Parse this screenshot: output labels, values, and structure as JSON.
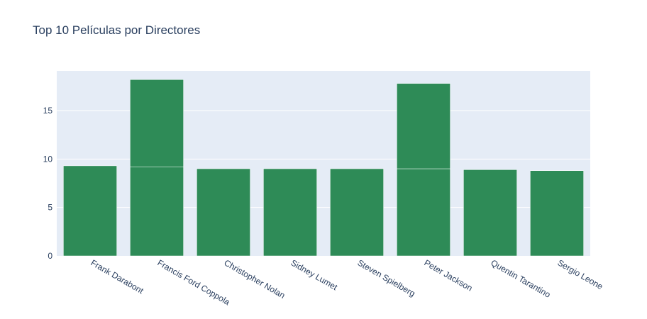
{
  "chart_data": {
    "type": "bar",
    "barmode": "stack",
    "title": "Top 10 Películas por Directores",
    "xlabel": "",
    "ylabel": "",
    "categories": [
      "Frank Darabont",
      "Francis Ford Coppola",
      "Christopher Nolan",
      "Sidney Lumet",
      "Steven Spielberg",
      "Peter Jackson",
      "Quentin Tarantino",
      "Sergio Leone"
    ],
    "segments": [
      {
        "category": "Frank Darabont",
        "value": 9.3
      },
      {
        "category": "Francis Ford Coppola",
        "value": 9.2
      },
      {
        "category": "Francis Ford Coppola",
        "value": 9.0
      },
      {
        "category": "Christopher Nolan",
        "value": 9.0
      },
      {
        "category": "Sidney Lumet",
        "value": 9.0
      },
      {
        "category": "Steven Spielberg",
        "value": 9.0
      },
      {
        "category": "Peter Jackson",
        "value": 9.0
      },
      {
        "category": "Peter Jackson",
        "value": 8.8
      },
      {
        "category": "Quentin Tarantino",
        "value": 8.9
      },
      {
        "category": "Sergio Leone",
        "value": 8.8
      }
    ],
    "ylim": [
      0,
      19.1
    ],
    "yticks": [
      0,
      5,
      10,
      15
    ],
    "grid": true,
    "colors": {
      "bar": "#2e8b57",
      "plot_bg": "#e5ecf6",
      "grid": "#ffffff",
      "text": "#2a3f5f"
    }
  }
}
